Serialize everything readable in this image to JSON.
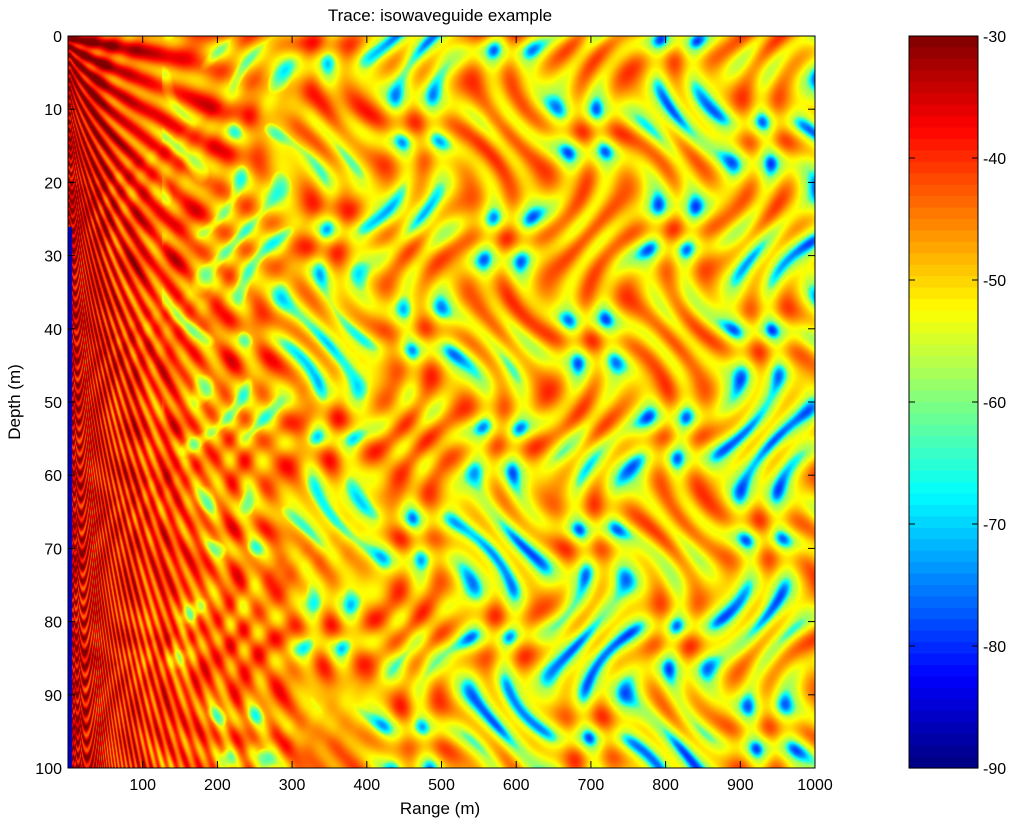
{
  "chart_data": {
    "type": "heatmap",
    "title": "Trace: isowaveguide example",
    "xlabel": "Range (m)",
    "ylabel": "Depth (m)",
    "xlim": [
      0,
      1000
    ],
    "ylim": [
      100,
      0
    ],
    "x_ticks": [
      100,
      200,
      300,
      400,
      500,
      600,
      700,
      800,
      900,
      1000
    ],
    "y_ticks": [
      0,
      10,
      20,
      30,
      40,
      50,
      60,
      70,
      80,
      90,
      100
    ],
    "colorbar": {
      "clim": [
        -90,
        -30
      ],
      "ticks": [
        -30,
        -40,
        -50,
        -60,
        -70,
        -80,
        -90
      ],
      "colormap": "jet",
      "position": "right"
    },
    "description_values": {
      "near_source_level_db": -32,
      "far_field_mean_level_db": -52,
      "min_level_db": -90,
      "max_level_db": -30
    }
  }
}
